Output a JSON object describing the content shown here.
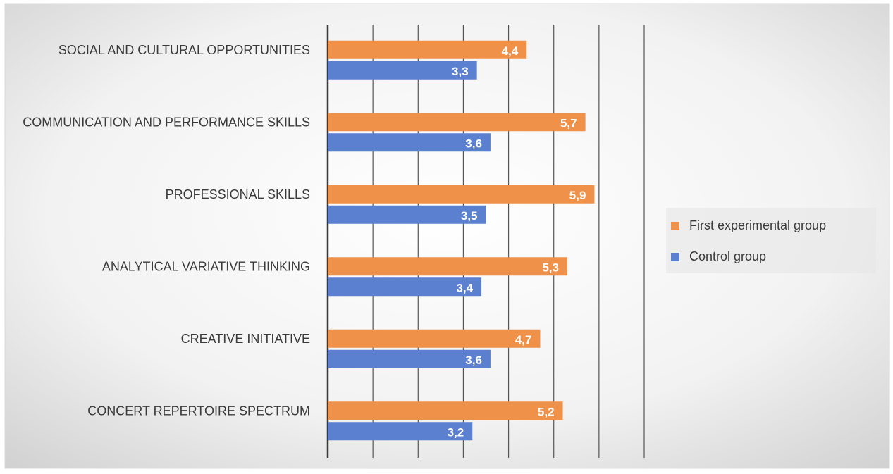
{
  "chart_data": {
    "type": "bar",
    "orientation": "horizontal",
    "categories": [
      "SOCIAL AND CULTURAL OPPORTUNITIES",
      "COMMUNICATION AND PERFORMANCE SKILLS",
      "PROFESSIONAL SKILLS",
      "ANALYTICAL VARIATIVE THINKING",
      "CREATIVE INITIATIVE",
      "CONCERT REPERTOIRE SPECTRUM"
    ],
    "series": [
      {
        "name": "First experimental group",
        "color": "#f0914a",
        "values": [
          4.4,
          5.7,
          5.9,
          5.3,
          4.7,
          5.2
        ],
        "value_labels": [
          "4,4",
          "5,7",
          "5,9",
          "5,3",
          "4,7",
          "5,2"
        ]
      },
      {
        "name": "Control group",
        "color": "#5b80d0",
        "values": [
          3.3,
          3.6,
          3.5,
          3.4,
          3.6,
          3.2
        ],
        "value_labels": [
          "3,3",
          "3,6",
          "3,5",
          "3,4",
          "3,6",
          "3,2"
        ]
      }
    ],
    "xlim": [
      0,
      7
    ],
    "xticks": [
      0,
      1,
      2,
      3,
      4,
      5,
      6,
      7
    ],
    "grid": true,
    "legend": "right"
  }
}
